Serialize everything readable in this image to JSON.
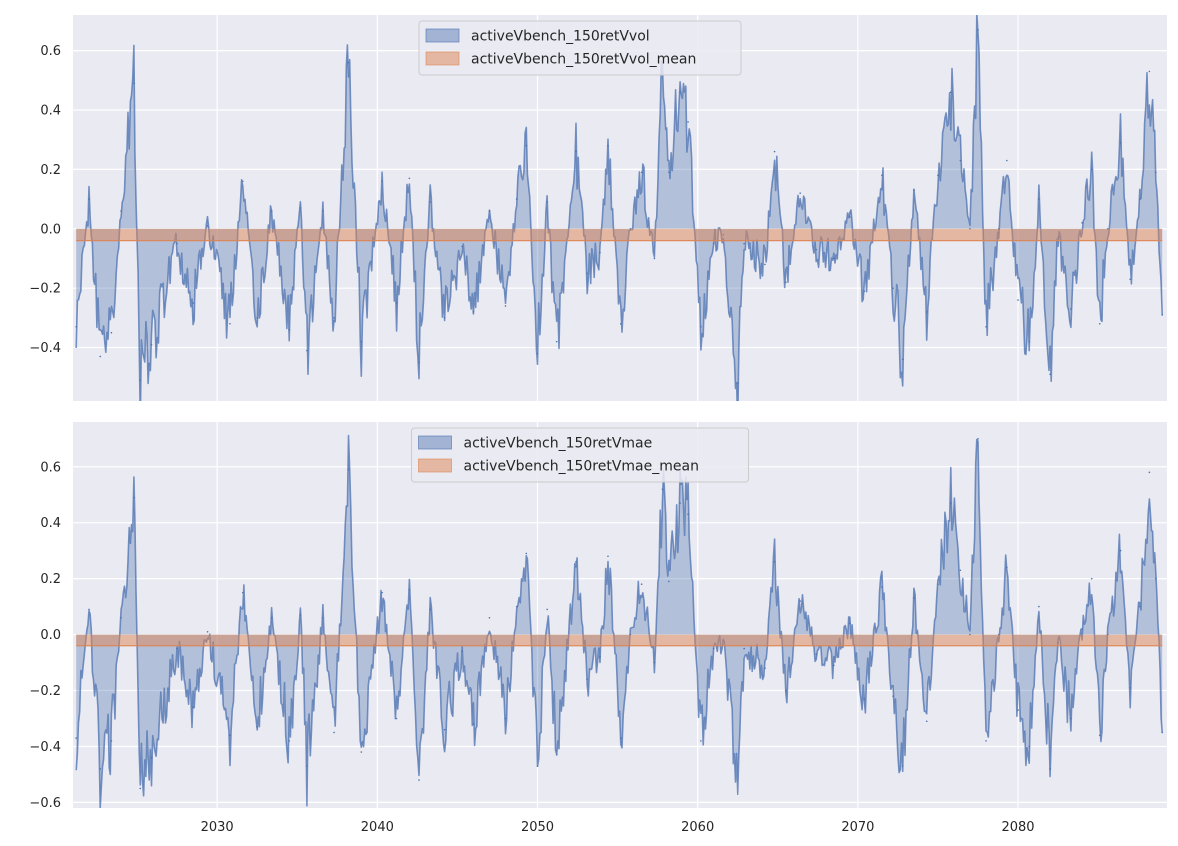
{
  "chart_data": [
    {
      "type": "area",
      "panel": "top",
      "legend_position": "upper center",
      "grid": true,
      "xlim": [
        2021.0,
        2089.3
      ],
      "ylim": [
        -0.58,
        0.72
      ],
      "x_ticks": [],
      "y_ticks": [
        -0.4,
        -0.2,
        0.0,
        0.2,
        0.4,
        0.6
      ],
      "y_tick_labels": [
        "−0.4",
        "−0.2",
        "0.0",
        "0.2",
        "0.4",
        "0.6"
      ],
      "series": [
        {
          "name": "activeVbench_150retVvol",
          "color": "#4c72b0",
          "x": [
            2021.2,
            2022.0,
            2022.7,
            2023.4,
            2024.0,
            2024.8,
            2025.2,
            2025.9,
            2027.5,
            2028.5,
            2029.4,
            2030.8,
            2031.6,
            2032.5,
            2033.4,
            2034.5,
            2035.2,
            2035.6,
            2036.6,
            2037.3,
            2038.2,
            2039.0,
            2040.3,
            2041.2,
            2042.0,
            2042.6,
            2043.3,
            2044.2,
            2045.3,
            2046.0,
            2047.0,
            2048.0,
            2048.7,
            2049.3,
            2050.0,
            2050.6,
            2051.2,
            2052.4,
            2053.1,
            2053.9,
            2054.4,
            2055.2,
            2055.8,
            2056.5,
            2057.3,
            2057.8,
            2058.2,
            2058.9,
            2059.4,
            2060.2,
            2061.0,
            2061.6,
            2062.5,
            2062.9,
            2064.2,
            2064.8,
            2065.5,
            2066.4,
            2067.4,
            2068.5,
            2069.5,
            2070.4,
            2071.5,
            2072.2,
            2072.8,
            2073.5,
            2074.3,
            2075.0,
            2075.8,
            2076.4,
            2077.0,
            2077.5,
            2078.0,
            2078.8,
            2079.3,
            2080.0,
            2080.7,
            2081.3,
            2082.0,
            2082.5,
            2083.3,
            2084.0,
            2084.6,
            2085.1,
            2085.6,
            2086.4,
            2087.0,
            2087.6,
            2088.2,
            2088.6,
            2089.0
          ],
          "y": [
            -0.33,
            0.1,
            -0.43,
            -0.35,
            0.06,
            0.49,
            -0.51,
            -0.39,
            -0.05,
            -0.25,
            0.01,
            -0.32,
            0.16,
            -0.3,
            0.06,
            -0.34,
            0.07,
            -0.41,
            0.06,
            -0.3,
            0.56,
            -0.38,
            0.16,
            -0.25,
            0.17,
            -0.45,
            0.09,
            -0.3,
            -0.06,
            -0.28,
            0.06,
            -0.26,
            0.1,
            0.28,
            -0.42,
            0.09,
            -0.38,
            0.26,
            -0.15,
            -0.08,
            0.28,
            -0.32,
            0.0,
            0.19,
            -0.1,
            0.52,
            0.19,
            0.46,
            0.36,
            -0.33,
            -0.05,
            -0.02,
            -0.52,
            -0.05,
            -0.12,
            0.26,
            -0.18,
            0.12,
            -0.07,
            -0.1,
            0.04,
            -0.21,
            0.18,
            -0.2,
            -0.44,
            0.13,
            -0.28,
            0.18,
            0.46,
            0.23,
            0.0,
            0.67,
            -0.33,
            0.0,
            0.23,
            -0.24,
            -0.38,
            0.1,
            -0.49,
            -0.03,
            -0.27,
            0.02,
            0.2,
            -0.32,
            0.0,
            0.29,
            -0.17,
            0.1,
            0.53,
            0.19,
            -0.29
          ]
        },
        {
          "name": "activeVbench_150retVvol_mean",
          "color": "#dd8452",
          "band": [
            -0.04,
            0.0
          ]
        }
      ]
    },
    {
      "type": "area",
      "panel": "bottom",
      "legend_position": "upper center",
      "grid": true,
      "xlim": [
        2021.0,
        2089.3
      ],
      "ylim": [
        -0.62,
        0.76
      ],
      "x_ticks": [
        2030,
        2040,
        2050,
        2060,
        2070,
        2080
      ],
      "x_tick_labels": [
        "2030",
        "2040",
        "2050",
        "2060",
        "2070",
        "2080"
      ],
      "y_ticks": [
        -0.6,
        -0.4,
        -0.2,
        0.0,
        0.2,
        0.4,
        0.6
      ],
      "y_tick_labels": [
        "−0.6",
        "−0.4",
        "−0.2",
        "0.0",
        "0.2",
        "0.4",
        "0.6"
      ],
      "series": [
        {
          "name": "activeVbench_150retVmae",
          "color": "#4c72b0",
          "x": [
            2021.2,
            2022.0,
            2022.7,
            2023.4,
            2024.0,
            2024.8,
            2025.2,
            2025.9,
            2027.5,
            2028.5,
            2029.4,
            2030.8,
            2031.6,
            2032.5,
            2033.4,
            2034.5,
            2035.2,
            2035.6,
            2036.6,
            2037.3,
            2038.2,
            2039.0,
            2040.3,
            2041.2,
            2042.0,
            2042.6,
            2043.3,
            2044.2,
            2045.3,
            2046.0,
            2047.0,
            2048.0,
            2048.7,
            2049.3,
            2050.0,
            2050.6,
            2051.2,
            2052.4,
            2053.1,
            2053.9,
            2054.4,
            2055.2,
            2055.8,
            2056.5,
            2057.3,
            2057.8,
            2058.2,
            2058.9,
            2059.4,
            2060.2,
            2061.0,
            2061.6,
            2062.5,
            2062.9,
            2064.2,
            2064.8,
            2065.5,
            2066.4,
            2067.4,
            2068.5,
            2069.5,
            2070.4,
            2071.5,
            2072.2,
            2072.8,
            2073.5,
            2074.3,
            2075.0,
            2075.8,
            2076.4,
            2077.0,
            2077.5,
            2078.0,
            2078.8,
            2079.3,
            2080.0,
            2080.7,
            2081.3,
            2082.0,
            2082.5,
            2083.3,
            2084.0,
            2084.6,
            2085.1,
            2085.6,
            2086.4,
            2087.0,
            2087.6,
            2088.2,
            2088.6,
            2089.0
          ],
          "y": [
            -0.37,
            0.09,
            -0.48,
            -0.38,
            0.06,
            0.49,
            -0.55,
            -0.44,
            -0.05,
            -0.26,
            0.01,
            -0.36,
            0.15,
            -0.33,
            0.06,
            -0.38,
            0.07,
            -0.47,
            0.06,
            -0.35,
            0.59,
            -0.42,
            0.15,
            -0.3,
            0.16,
            -0.52,
            0.09,
            -0.34,
            -0.06,
            -0.32,
            0.06,
            -0.3,
            0.1,
            0.29,
            -0.47,
            0.09,
            -0.43,
            0.26,
            -0.16,
            -0.08,
            0.28,
            -0.37,
            0.0,
            0.18,
            -0.1,
            0.52,
            0.19,
            0.47,
            0.43,
            -0.38,
            -0.05,
            -0.02,
            -0.57,
            -0.05,
            -0.12,
            0.26,
            -0.2,
            0.12,
            -0.07,
            -0.11,
            0.04,
            -0.23,
            0.17,
            -0.22,
            -0.47,
            0.13,
            -0.31,
            0.18,
            0.47,
            0.23,
            0.0,
            0.7,
            -0.38,
            0.0,
            0.24,
            -0.27,
            -0.4,
            0.1,
            -0.48,
            -0.03,
            -0.3,
            0.02,
            0.2,
            -0.36,
            0.0,
            0.3,
            -0.19,
            0.1,
            0.58,
            0.2,
            -0.35
          ]
        },
        {
          "name": "activeVbench_150retVmae_mean",
          "color": "#dd8452",
          "band": [
            -0.04,
            0.0
          ]
        }
      ]
    }
  ]
}
